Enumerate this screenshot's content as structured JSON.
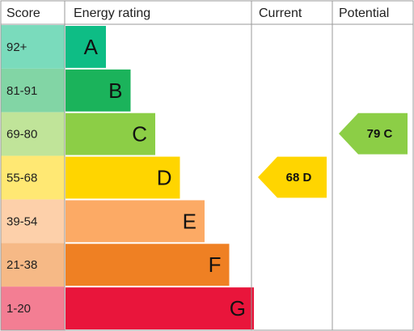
{
  "chart_data": {
    "type": "bar",
    "headers": {
      "score": "Score",
      "rating": "Energy rating",
      "current": "Current",
      "potential": "Potential"
    },
    "bands": [
      {
        "score": "92+",
        "letter": "A",
        "level": 1,
        "color": "#0ebd85"
      },
      {
        "score": "81-91",
        "letter": "B",
        "level": 2,
        "color": "#1bb35b"
      },
      {
        "score": "69-80",
        "letter": "C",
        "level": 3,
        "color": "#8cce46"
      },
      {
        "score": "55-68",
        "letter": "D",
        "level": 4,
        "color": "#ffd500"
      },
      {
        "score": "39-54",
        "letter": "E",
        "level": 5,
        "color": "#fcaa65"
      },
      {
        "score": "21-38",
        "letter": "F",
        "level": 6,
        "color": "#ef8023"
      },
      {
        "score": "1-20",
        "letter": "G",
        "level": 7,
        "color": "#e9153b"
      }
    ],
    "current": {
      "label": "68 D",
      "value": 68,
      "band": "D",
      "color": "#ffd500"
    },
    "potential": {
      "label": "79 C",
      "value": 79,
      "band": "C",
      "color": "#8cce46"
    }
  }
}
